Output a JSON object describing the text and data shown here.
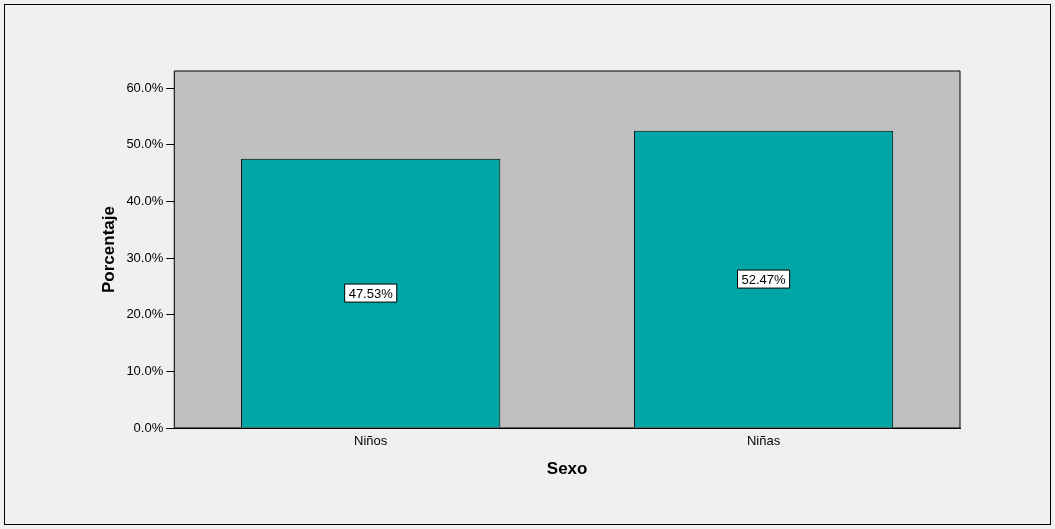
{
  "chart_data": {
    "type": "bar",
    "xlabel": "Sexo",
    "ylabel": "Porcentaje",
    "categories": [
      "Niños",
      "Niñas"
    ],
    "series": [
      {
        "color": "#00a6a6",
        "values": [
          47.53,
          52.47
        ],
        "value_labels": [
          "47.53%",
          "52.47%"
        ]
      }
    ],
    "ylim": [
      0,
      63
    ],
    "yticks": [
      {
        "value": 0,
        "label": "0.0%"
      },
      {
        "value": 10,
        "label": "10.0%"
      },
      {
        "value": 20,
        "label": "20.0%"
      },
      {
        "value": 30,
        "label": "30.0%"
      },
      {
        "value": 40,
        "label": "40.0%"
      },
      {
        "value": 50,
        "label": "50.0%"
      },
      {
        "value": 60,
        "label": "60.0%"
      }
    ],
    "grid": false,
    "legend": false
  }
}
